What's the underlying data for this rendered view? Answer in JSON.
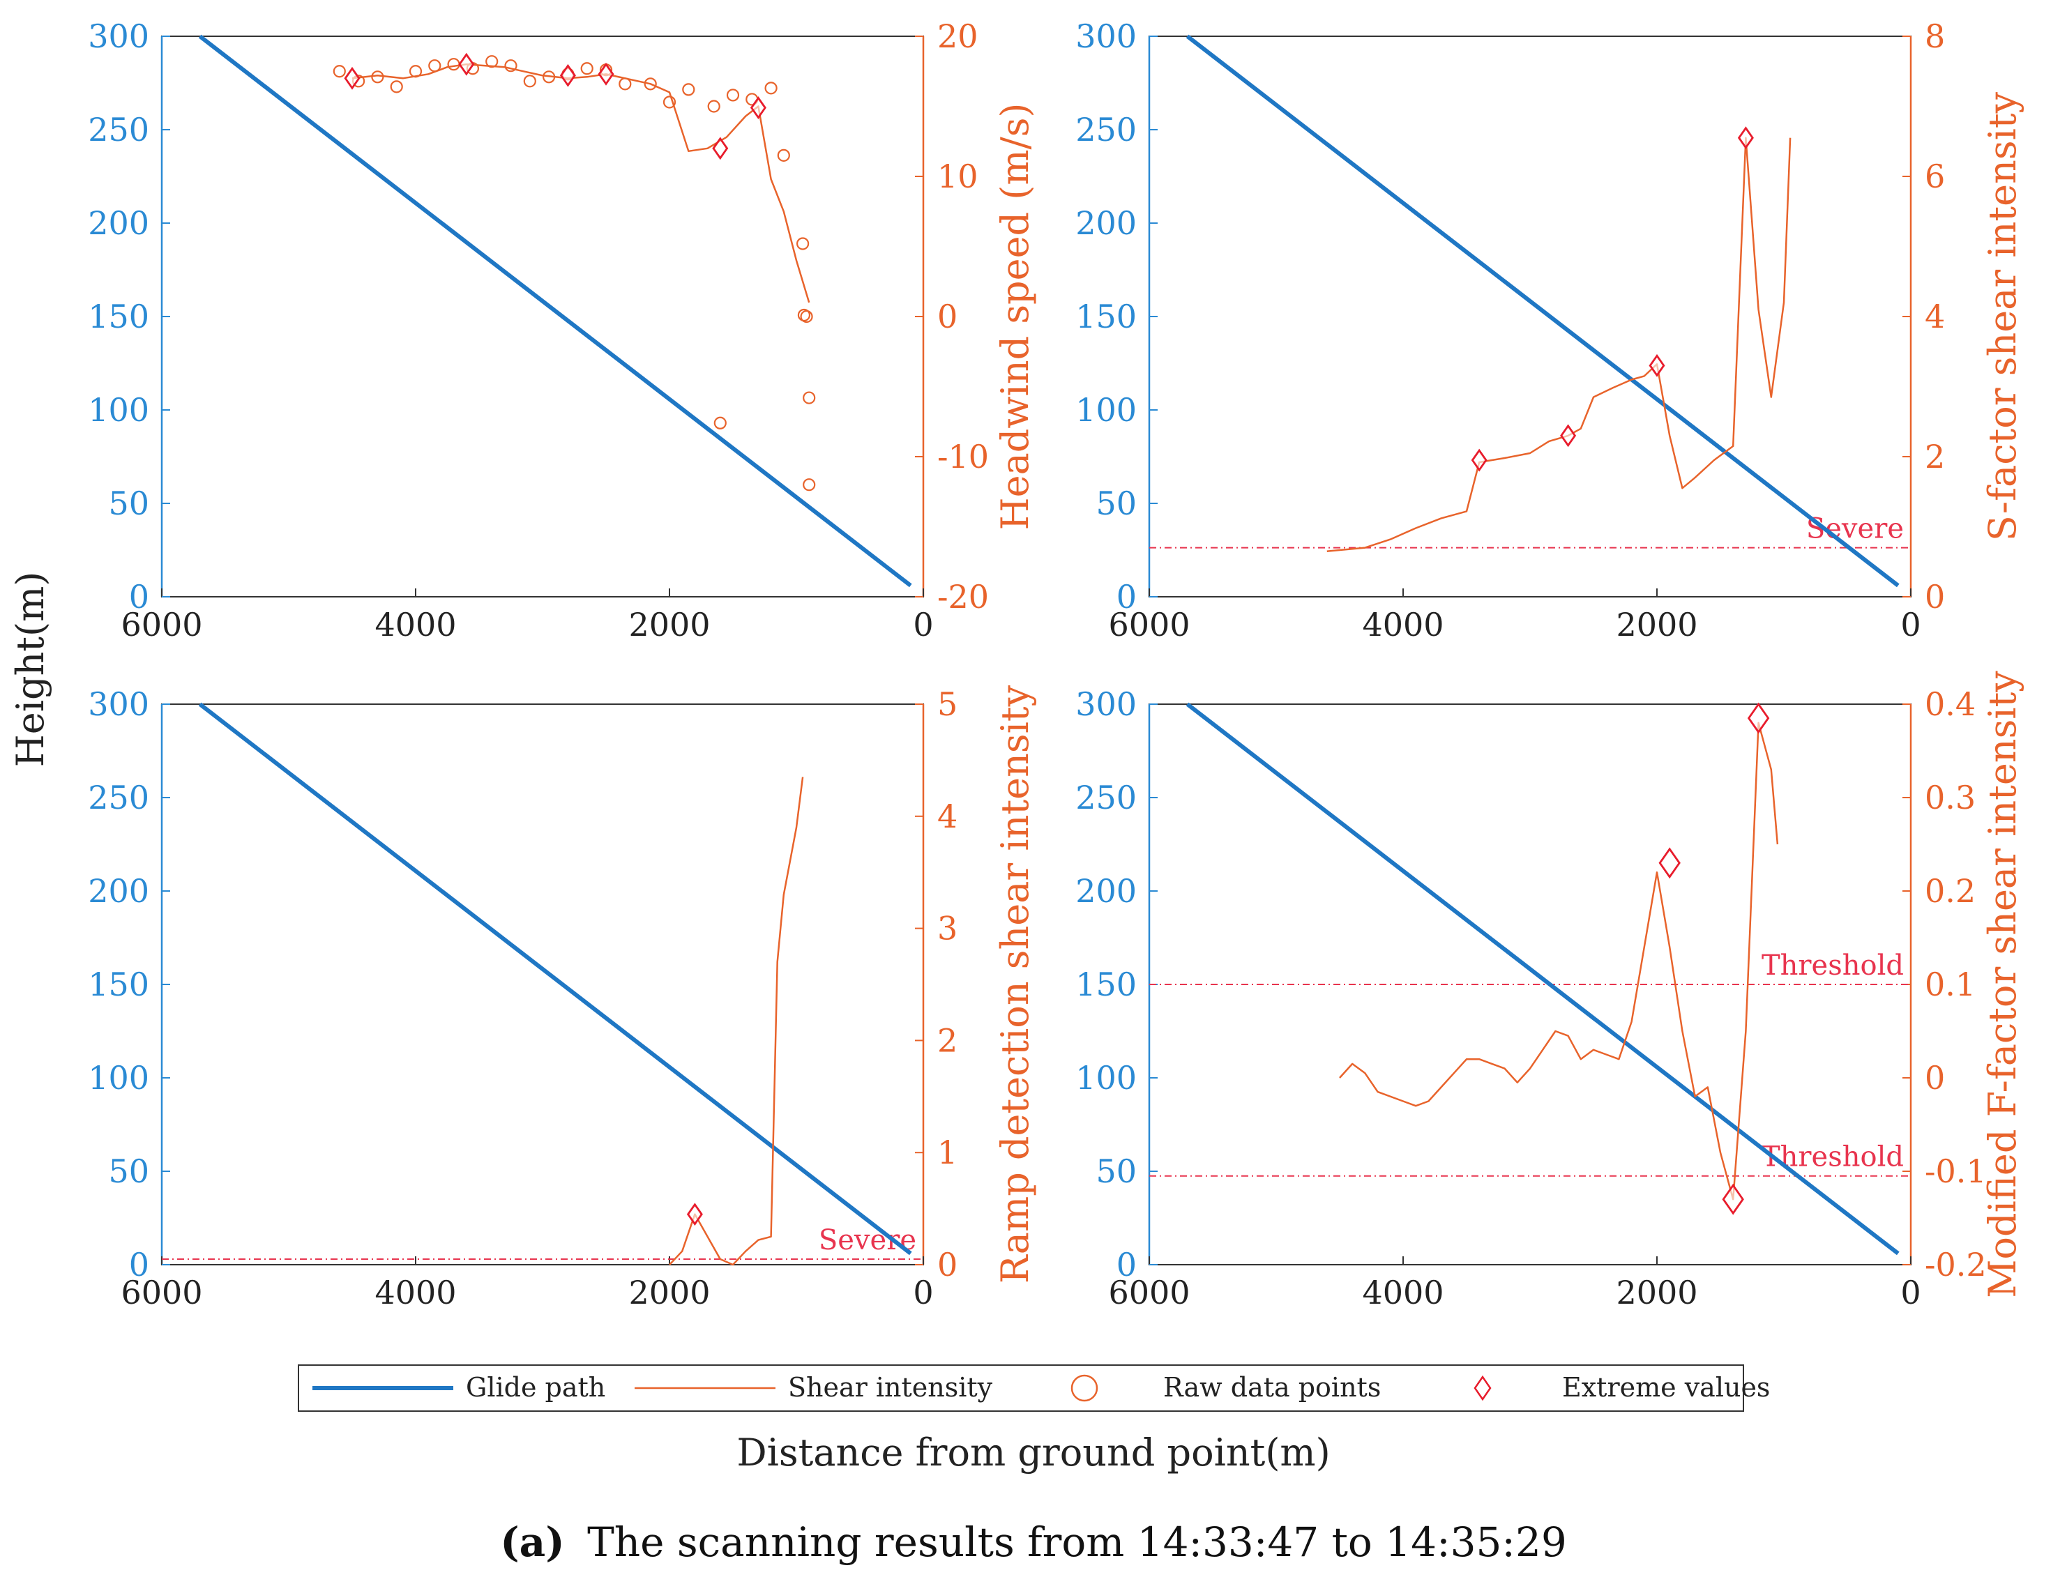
{
  "figure": {
    "shared_y_label": "Height(m)",
    "shared_x_label": "Distance from ground point(m)",
    "caption_letter": "(a)",
    "caption_text": "The scanning results from 14:33:47 to 14:35:29"
  },
  "legend": {
    "glide": "Glide path",
    "shear": "Shear intensity",
    "raw": "Raw data points",
    "extreme": "Extreme values"
  },
  "colors": {
    "glide": "#1f77c4",
    "left_axis": "#2a8ad4",
    "shear": "#e8632b",
    "right_axis": "#e8632b",
    "threshold": "#e8344e",
    "extreme": "#e81c2c"
  },
  "chart_data": [
    {
      "type": "line",
      "panel": "top-left",
      "x_label": "",
      "xlim": [
        6000,
        0
      ],
      "x_ticks": [
        "6000",
        "4000",
        "2000",
        "0"
      ],
      "left_ylim": [
        0,
        300
      ],
      "left_ticks": [
        "300",
        "250",
        "200",
        "150",
        "100",
        "50",
        "0"
      ],
      "right_label": "Headwind speed (m/s)",
      "right_ylim": [
        -20,
        20
      ],
      "right_ticks": [
        "20",
        "10",
        "0",
        "-10",
        "-20"
      ],
      "glide": {
        "x": [
          5700,
          100
        ],
        "y": [
          300,
          6
        ]
      },
      "shear": {
        "x": [
          4500,
          4300,
          4100,
          3900,
          3750,
          3600,
          3450,
          3300,
          3150,
          3000,
          2800,
          2650,
          2500,
          2350,
          2150,
          2000,
          1850,
          1700,
          1550,
          1400,
          1300,
          1200,
          1100,
          1000,
          900
        ],
        "y": [
          17,
          17.2,
          17,
          17.3,
          17.8,
          18,
          17.9,
          17.8,
          17.5,
          17.2,
          17,
          17.1,
          17.3,
          17,
          16.6,
          16,
          11.8,
          12,
          12.8,
          14.3,
          15,
          9.8,
          7.5,
          4,
          1
        ]
      },
      "raw": {
        "x": [
          4600,
          4450,
          4300,
          4150,
          4000,
          3850,
          3700,
          3550,
          3400,
          3250,
          3100,
          2950,
          2800,
          2650,
          2500,
          2350,
          2150,
          2000,
          1850,
          1650,
          1500,
          1350,
          1200,
          1100,
          950,
          940,
          920,
          900,
          900,
          1600
        ],
        "y": [
          17.5,
          16.8,
          17.1,
          16.4,
          17.5,
          17.9,
          18,
          17.7,
          18.2,
          17.9,
          16.8,
          17.1,
          17.3,
          17.7,
          17.6,
          16.6,
          16.6,
          15.3,
          16.2,
          15,
          15.8,
          15.5,
          16.3,
          11.5,
          5.2,
          0.1,
          0,
          -5.8,
          -12,
          -7.6
        ]
      },
      "extremes": {
        "x": [
          4500,
          3600,
          2800,
          2500,
          1600,
          1300
        ],
        "y": [
          17,
          18,
          17.2,
          17.3,
          12,
          14.9
        ]
      },
      "thresholds": []
    },
    {
      "type": "line",
      "panel": "top-right",
      "x_label": "",
      "xlim": [
        6000,
        0
      ],
      "x_ticks": [
        "6000",
        "4000",
        "2000",
        "0"
      ],
      "left_ylim": [
        0,
        300
      ],
      "left_ticks": [
        "300",
        "250",
        "200",
        "150",
        "100",
        "50",
        "0"
      ],
      "right_label": "S-factor shear intensity",
      "right_ylim": [
        0,
        8
      ],
      "right_ticks": [
        "8",
        "6",
        "4",
        "2",
        "0"
      ],
      "glide": {
        "x": [
          5700,
          100
        ],
        "y": [
          300,
          6
        ]
      },
      "shear": {
        "x": [
          4600,
          4300,
          4100,
          3900,
          3700,
          3500,
          3400,
          3200,
          3000,
          2850,
          2700,
          2600,
          2500,
          2350,
          2200,
          2100,
          2000,
          1900,
          1800,
          1700,
          1550,
          1400,
          1300,
          1200,
          1100,
          1000,
          950
        ],
        "y": [
          0.65,
          0.7,
          0.82,
          0.98,
          1.12,
          1.22,
          1.92,
          1.98,
          2.05,
          2.22,
          2.3,
          2.4,
          2.85,
          2.98,
          3.1,
          3.15,
          3.32,
          2.3,
          1.55,
          1.7,
          1.95,
          2.15,
          6.55,
          4.1,
          2.85,
          4.2,
          6.55
        ]
      },
      "raw": {
        "x": [],
        "y": []
      },
      "extremes": {
        "x": [
          3400,
          2700,
          2000,
          1300
        ],
        "y": [
          1.95,
          2.3,
          3.3,
          6.55
        ]
      },
      "thresholds": [
        {
          "label": "Severe",
          "value": 0.7
        }
      ]
    },
    {
      "type": "line",
      "panel": "bottom-left",
      "x_label": "",
      "xlim": [
        6000,
        0
      ],
      "x_ticks": [
        "6000",
        "4000",
        "2000",
        "0"
      ],
      "left_ylim": [
        0,
        300
      ],
      "left_ticks": [
        "300",
        "250",
        "200",
        "150",
        "100",
        "50",
        "0"
      ],
      "right_label": "Ramp detection shear intensity",
      "right_ylim": [
        0,
        5
      ],
      "right_ticks": [
        "5",
        "4",
        "3",
        "2",
        "1",
        "0"
      ],
      "glide": {
        "x": [
          5700,
          100
        ],
        "y": [
          300,
          6
        ]
      },
      "shear": {
        "x": [
          2000,
          1900,
          1800,
          1700,
          1600,
          1500,
          1400,
          1300,
          1200,
          1150,
          1100,
          1000,
          950
        ],
        "y": [
          0,
          0.12,
          0.45,
          0.25,
          0.05,
          0,
          0.12,
          0.22,
          0.25,
          2.7,
          3.3,
          3.9,
          4.35
        ]
      },
      "raw": {
        "x": [],
        "y": []
      },
      "extremes": {
        "x": [
          1800
        ],
        "y": [
          0.45
        ]
      },
      "thresholds": [
        {
          "label": "Severe",
          "value": 0.05
        }
      ]
    },
    {
      "type": "line",
      "panel": "bottom-right",
      "x_label": "",
      "xlim": [
        6000,
        0
      ],
      "x_ticks": [
        "6000",
        "4000",
        "2000",
        "0"
      ],
      "left_ylim": [
        0,
        300
      ],
      "left_ticks": [
        "300",
        "250",
        "200",
        "150",
        "100",
        "50",
        "0"
      ],
      "right_label": "Modified F-factor shear intensity",
      "right_ylim": [
        -0.2,
        0.4
      ],
      "right_ticks": [
        "0.4",
        "0.3",
        "0.2",
        "0.1",
        "0",
        "-0.1",
        "-0.2"
      ],
      "glide": {
        "x": [
          5700,
          100
        ],
        "y": [
          300,
          6
        ]
      },
      "shear": {
        "x": [
          4500,
          4400,
          4300,
          4200,
          4000,
          3900,
          3800,
          3700,
          3600,
          3500,
          3400,
          3300,
          3200,
          3100,
          3000,
          2900,
          2800,
          2700,
          2600,
          2500,
          2400,
          2300,
          2200,
          2100,
          2000,
          1900,
          1800,
          1700,
          1600,
          1500,
          1400,
          1300,
          1200,
          1100,
          1050
        ],
        "y": [
          0,
          0.015,
          0.005,
          -0.015,
          -0.025,
          -0.03,
          -0.025,
          -0.01,
          0.005,
          0.02,
          0.02,
          0.015,
          0.01,
          -0.005,
          0.01,
          0.03,
          0.05,
          0.045,
          0.02,
          0.03,
          0.025,
          0.02,
          0.06,
          0.14,
          0.22,
          0.14,
          0.05,
          -0.02,
          -0.01,
          -0.08,
          -0.13,
          0.05,
          0.38,
          0.33,
          0.25
        ]
      },
      "raw": {
        "x": [],
        "y": []
      },
      "extremes": {
        "x": [
          1900,
          1400,
          1200
        ],
        "y": [
          0.23,
          -0.13,
          0.385
        ]
      },
      "thresholds": [
        {
          "label": "Threshold",
          "value": 0.1
        },
        {
          "label": "Threshold",
          "value": -0.105
        }
      ]
    }
  ]
}
